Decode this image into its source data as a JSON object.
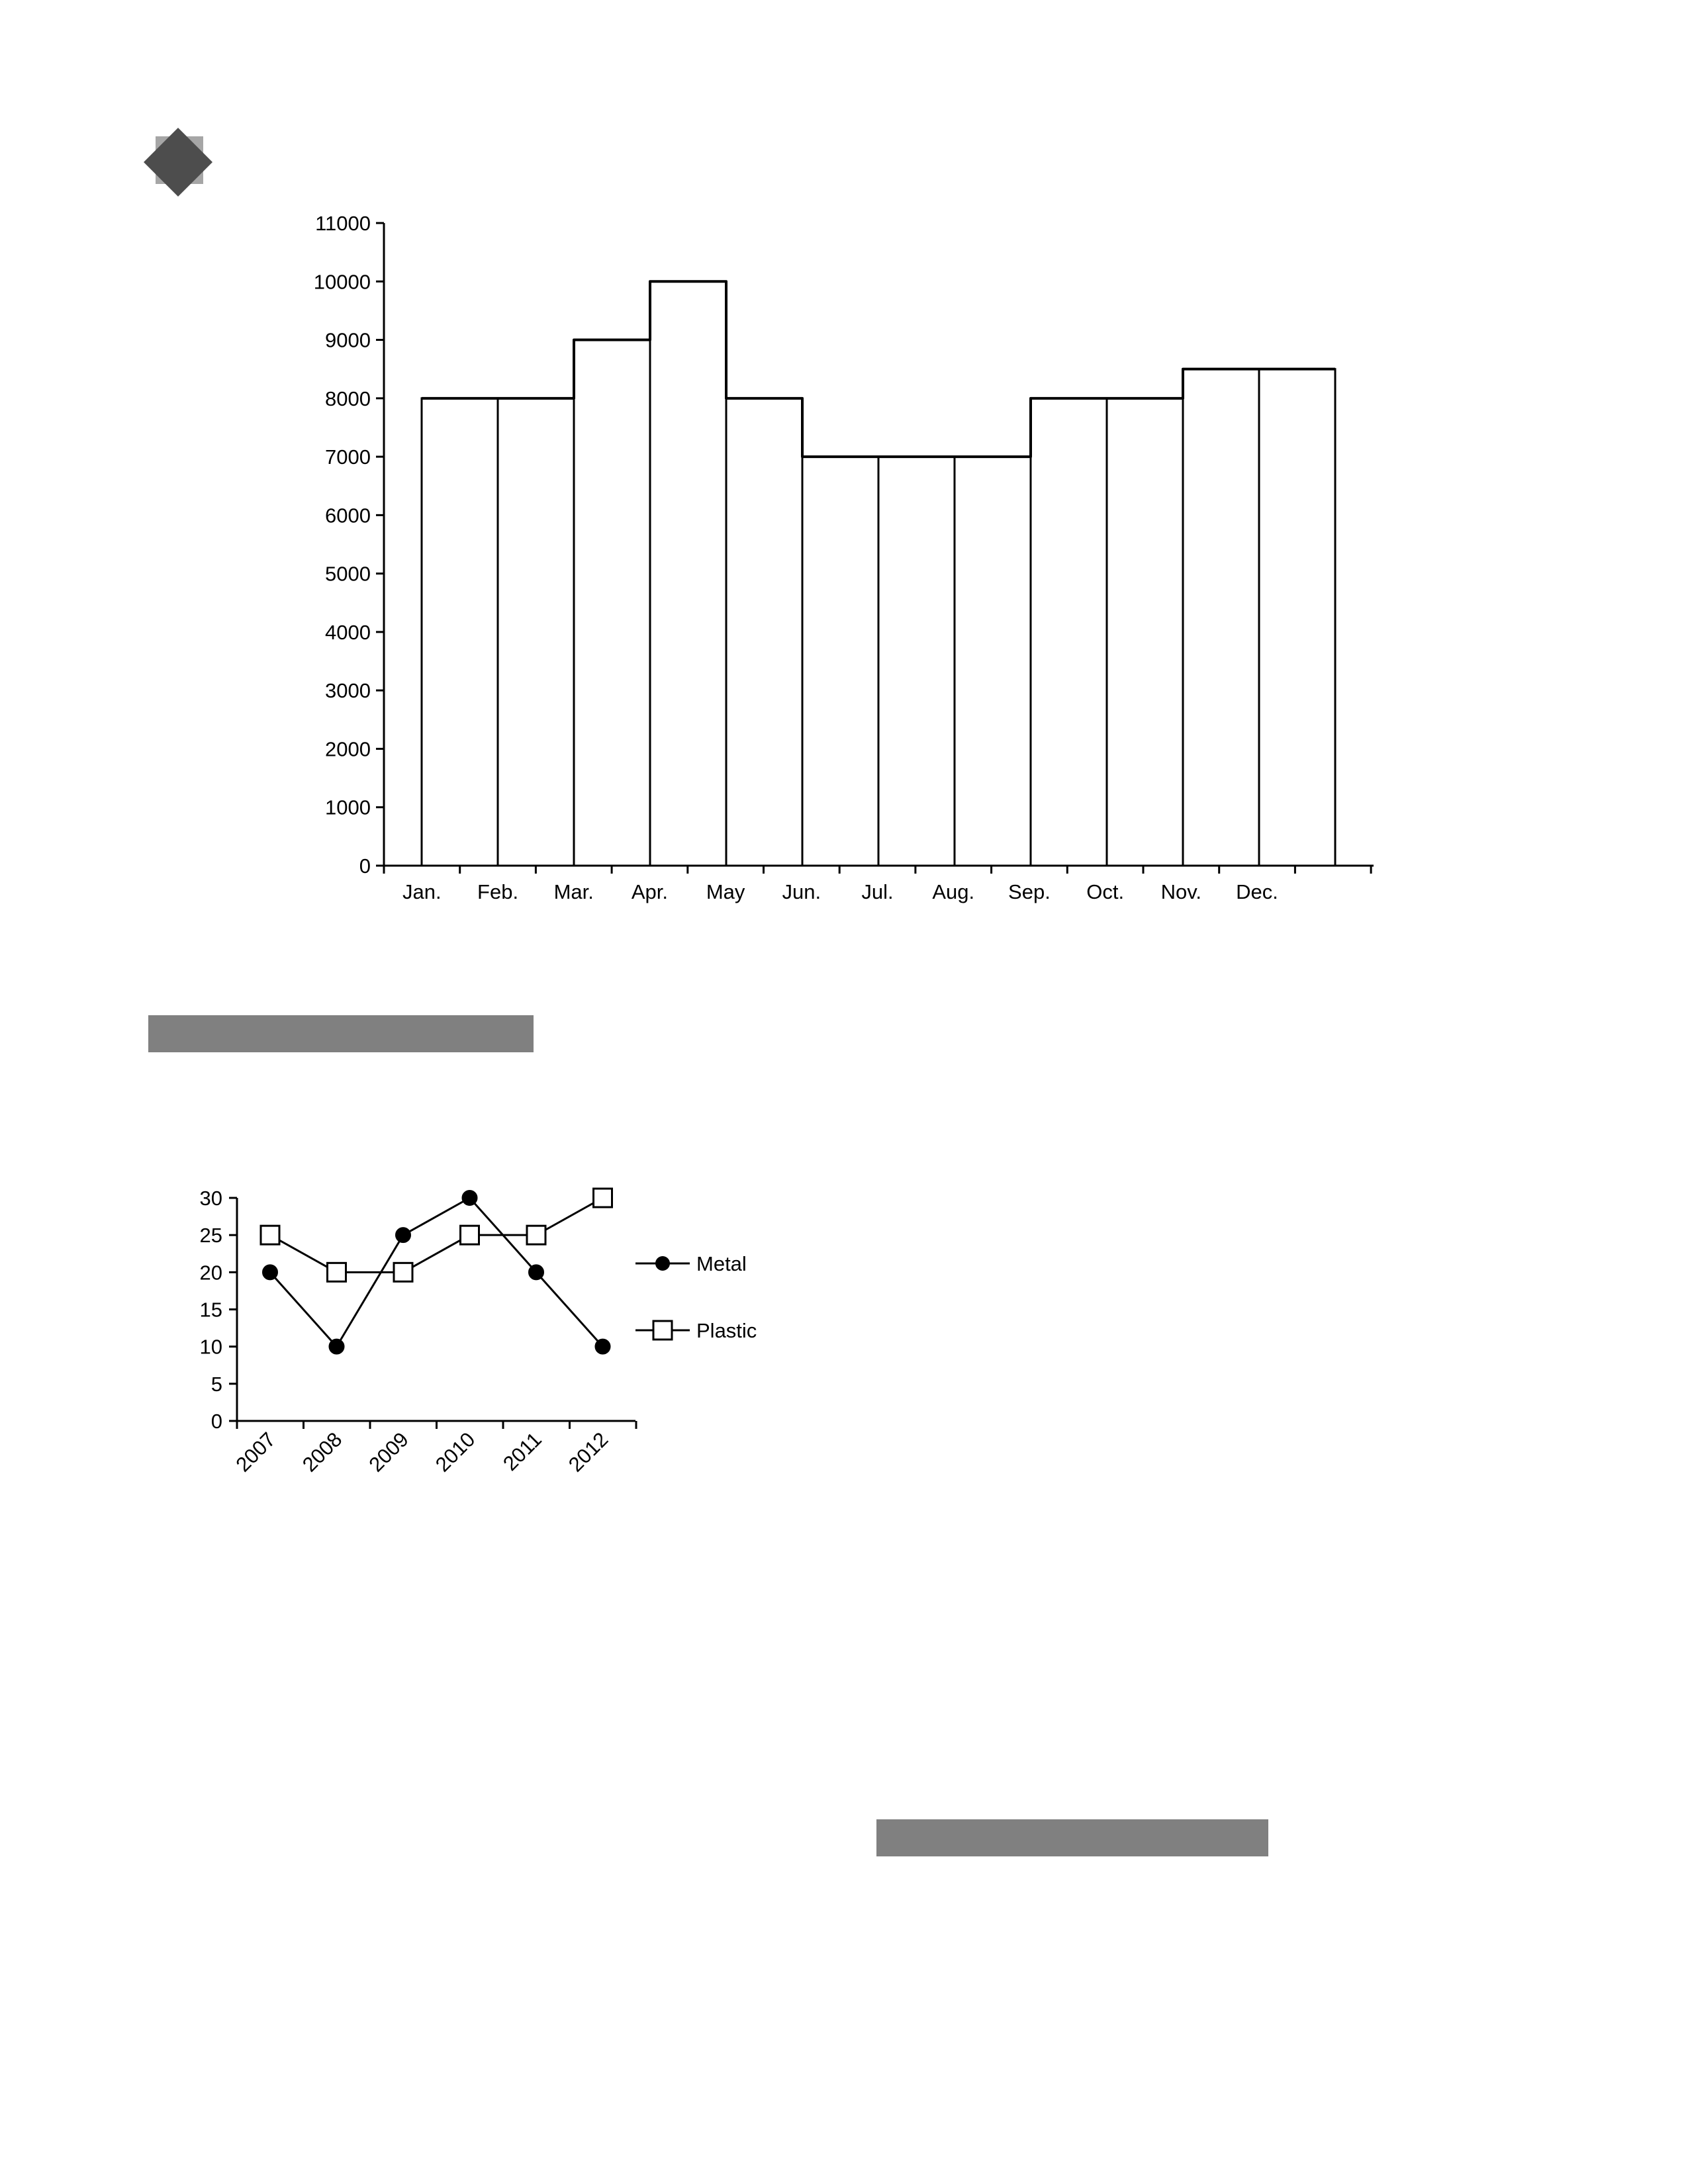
{
  "colors": {
    "diamond_dark": "#4d4d4d",
    "diamond_light": "#a6a6a6",
    "section_bar": "#808080",
    "ink": "#000000"
  },
  "icons": {
    "header": "diamond-icon"
  },
  "chart_data": [
    {
      "type": "bar",
      "categories": [
        "Jan.",
        "Feb.",
        "Mar.",
        "Apr.",
        "May",
        "Jun.",
        "Jul.",
        "Aug.",
        "Sep.",
        "Oct.",
        "Nov.",
        "Dec."
      ],
      "values": [
        8000,
        8000,
        9000,
        10000,
        8000,
        7000,
        7000,
        7000,
        8000,
        8000,
        8500,
        8500
      ],
      "title": "",
      "xlabel": "",
      "ylabel": "",
      "ylim": [
        0,
        11000
      ],
      "yticks": [
        0,
        1000,
        2000,
        3000,
        4000,
        5000,
        6000,
        7000,
        8000,
        9000,
        10000,
        11000
      ],
      "grid": false,
      "legend": "none"
    },
    {
      "type": "line",
      "x": [
        "2007",
        "2008",
        "2009",
        "2010",
        "2011",
        "2012"
      ],
      "series": [
        {
          "name": "Metal",
          "marker": "filled-circle",
          "values": [
            20,
            10,
            25,
            30,
            20,
            10
          ]
        },
        {
          "name": "Plastic",
          "marker": "open-square",
          "values": [
            25,
            20,
            20,
            25,
            25,
            30
          ]
        }
      ],
      "title": "",
      "xlabel": "",
      "ylabel": "",
      "ylim": [
        0,
        30
      ],
      "yticks": [
        0,
        5,
        10,
        15,
        20,
        25,
        30
      ],
      "grid": false,
      "legend": "right"
    }
  ]
}
